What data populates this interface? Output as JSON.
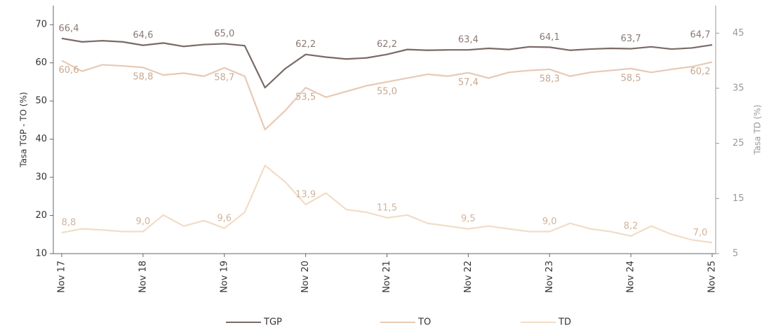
{
  "chart_data": {
    "type": "line",
    "ylabel": "Tasa TGP - TO (%)",
    "y2label": "Tasa TD (%)",
    "categories": [
      "Nov 17",
      null,
      null,
      null,
      "Nov 18",
      null,
      null,
      null,
      "Nov 19",
      null,
      null,
      null,
      "Nov 20",
      null,
      null,
      null,
      "Nov 21",
      null,
      null,
      null,
      "Nov 22",
      null,
      null,
      null,
      "Nov 23",
      null,
      null,
      null,
      "Nov 24",
      null,
      null,
      null,
      "Nov 25"
    ],
    "ylim": [
      10,
      75
    ],
    "yticks": [
      10,
      20,
      30,
      40,
      50,
      60,
      70
    ],
    "y2lim": [
      5,
      50
    ],
    "y2ticks": [
      5,
      15,
      25,
      35,
      45
    ],
    "legend": "bottom",
    "series": [
      {
        "name": "TGP",
        "color": "#7a6a66",
        "label_color": "#8a7a74",
        "values": [
          66.4,
          65.5,
          65.8,
          65.5,
          64.6,
          65.2,
          64.3,
          64.8,
          65.0,
          64.5,
          53.5,
          58.5,
          62.2,
          61.5,
          61.0,
          61.3,
          62.2,
          63.5,
          63.3,
          63.4,
          63.4,
          63.8,
          63.5,
          64.2,
          64.1,
          63.3,
          63.6,
          63.8,
          63.7,
          64.2,
          63.6,
          63.9,
          64.7
        ],
        "value_labels": [
          "66,4",
          null,
          null,
          null,
          "64,6",
          null,
          null,
          null,
          "65,0",
          null,
          null,
          null,
          "62,2",
          null,
          null,
          null,
          "62,2",
          null,
          null,
          null,
          "63,4",
          null,
          null,
          null,
          "64,1",
          null,
          null,
          null,
          "63,7",
          null,
          null,
          null,
          "64,7"
        ]
      },
      {
        "name": "TO",
        "color": "#e8c9b4",
        "label_color": "#c9a88f",
        "values": [
          60.6,
          57.8,
          59.5,
          59.2,
          58.8,
          56.8,
          57.3,
          56.5,
          58.7,
          56.5,
          42.5,
          47.5,
          53.5,
          51.0,
          52.5,
          54.0,
          55.0,
          56.0,
          57.0,
          56.5,
          57.4,
          56.0,
          57.5,
          58.0,
          58.3,
          56.5,
          57.5,
          58.0,
          58.5,
          57.5,
          58.3,
          59.0,
          60.2
        ],
        "value_labels": [
          "60,6",
          null,
          null,
          null,
          "58,8",
          null,
          null,
          null,
          "58,7",
          null,
          null,
          null,
          "53,5",
          null,
          null,
          null,
          "55,0",
          null,
          null,
          null,
          "57,4",
          null,
          null,
          null,
          "58,3",
          null,
          null,
          null,
          "58,5",
          null,
          null,
          null,
          "60,2"
        ]
      },
      {
        "name": "TD",
        "color": "#f2dcc6",
        "label_color": "#d1b39b",
        "axis": "y2",
        "values": [
          8.8,
          9.5,
          9.3,
          9.0,
          9.0,
          12.0,
          10.0,
          11.0,
          9.6,
          12.5,
          21.0,
          18.0,
          13.9,
          16.0,
          13.0,
          12.5,
          11.5,
          12.0,
          10.5,
          10.0,
          9.5,
          10.0,
          9.5,
          9.0,
          9.0,
          10.5,
          9.5,
          9.0,
          8.2,
          10.0,
          8.5,
          7.5,
          7.0
        ],
        "value_labels": [
          "8,8",
          null,
          null,
          null,
          "9,0",
          null,
          null,
          null,
          "9,6",
          null,
          null,
          null,
          "13,9",
          null,
          null,
          null,
          "11,5",
          null,
          null,
          null,
          "9,5",
          null,
          null,
          null,
          "9,0",
          null,
          null,
          null,
          "8,2",
          null,
          null,
          null,
          "7,0"
        ]
      }
    ]
  }
}
